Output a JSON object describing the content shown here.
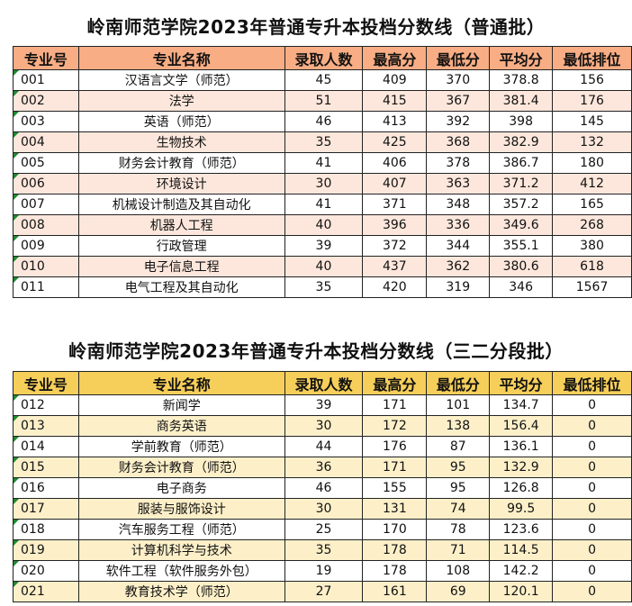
{
  "table1": {
    "title": "岭南师范学院2023年普通专升本投档分数线（普通批）",
    "headers": [
      "专业号",
      "专业名称",
      "录取人数",
      "最高分",
      "最低分",
      "平均分",
      "最低排位"
    ],
    "rows": [
      [
        "001",
        "汉语言文学（师范）",
        "45",
        "409",
        "370",
        "378.8",
        "156"
      ],
      [
        "002",
        "法学",
        "51",
        "415",
        "367",
        "381.4",
        "176"
      ],
      [
        "003",
        "英语（师范）",
        "46",
        "413",
        "392",
        "398",
        "145"
      ],
      [
        "004",
        "生物技术",
        "35",
        "425",
        "368",
        "382.9",
        "132"
      ],
      [
        "005",
        "财务会计教育（师范）",
        "41",
        "406",
        "378",
        "386.7",
        "180"
      ],
      [
        "006",
        "环境设计",
        "30",
        "407",
        "363",
        "371.2",
        "412"
      ],
      [
        "007",
        "机械设计制造及其自动化",
        "41",
        "371",
        "348",
        "357.2",
        "165"
      ],
      [
        "008",
        "机器人工程",
        "40",
        "396",
        "336",
        "349.6",
        "268"
      ],
      [
        "009",
        "行政管理",
        "39",
        "372",
        "344",
        "355.1",
        "380"
      ],
      [
        "010",
        "电子信息工程",
        "40",
        "437",
        "362",
        "380.6",
        "618"
      ],
      [
        "011",
        "电气工程及其自动化",
        "35",
        "420",
        "319",
        "346",
        "1567"
      ]
    ]
  },
  "table2": {
    "title": "岭南师范学院2023年普通专升本投档分数线（三二分段批）",
    "headers": [
      "专业号",
      "专业名称",
      "录取人数",
      "最高分",
      "最低分",
      "平均分",
      "最低排位"
    ],
    "rows": [
      [
        "012",
        "新闻学",
        "39",
        "171",
        "101",
        "134.7",
        "0"
      ],
      [
        "013",
        "商务英语",
        "30",
        "172",
        "138",
        "156.4",
        "0"
      ],
      [
        "014",
        "学前教育（师范）",
        "44",
        "176",
        "87",
        "136.1",
        "0"
      ],
      [
        "015",
        "财务会计教育（师范）",
        "36",
        "171",
        "95",
        "132.9",
        "0"
      ],
      [
        "016",
        "电子商务",
        "46",
        "155",
        "95",
        "126.8",
        "0"
      ],
      [
        "017",
        "服装与服饰设计",
        "30",
        "131",
        "74",
        "99.5",
        "0"
      ],
      [
        "018",
        "汽车服务工程（师范）",
        "25",
        "170",
        "78",
        "123.6",
        "0"
      ],
      [
        "019",
        "计算机科学与技术",
        "35",
        "178",
        "71",
        "114.5",
        "0"
      ],
      [
        "020",
        "软件工程（软件服务外包）",
        "19",
        "178",
        "108",
        "142.2",
        "0"
      ],
      [
        "021",
        "教育技术学（师范）",
        "27",
        "161",
        "69",
        "120.1",
        "0"
      ]
    ]
  },
  "colors": {
    "header1": "#f8ad84",
    "stripe1": "#fde7dc",
    "header2": "#f6cf5a",
    "stripe2": "#fdf0c9"
  }
}
